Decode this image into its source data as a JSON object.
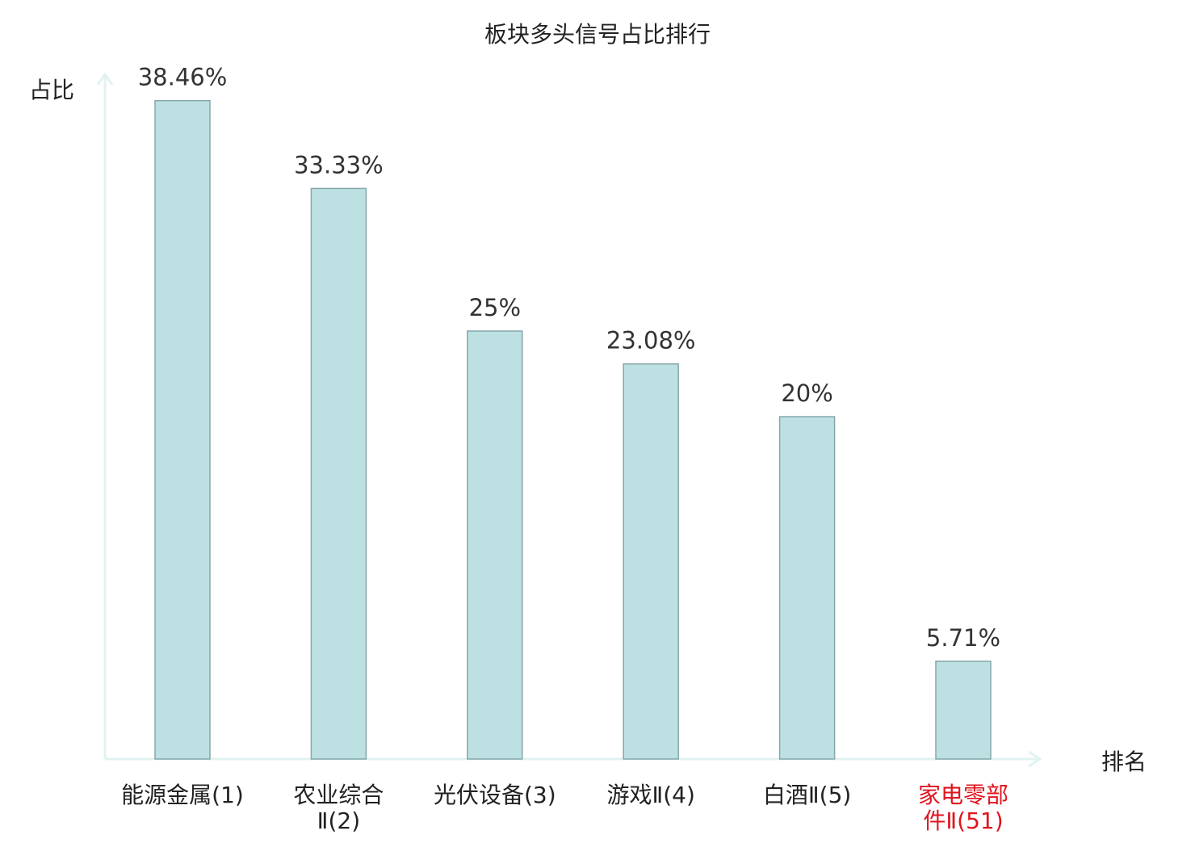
{
  "chart_data": {
    "type": "bar",
    "title": "板块多头信号占比排行",
    "xlabel": "排名",
    "ylabel": "占比",
    "ylim": [
      0,
      40
    ],
    "grid": false,
    "legend": "none",
    "categories": [
      [
        "能源金属(1)"
      ],
      [
        "农业综合",
        "Ⅱ(2)"
      ],
      [
        "光伏设备(3)"
      ],
      [
        "游戏Ⅱ(4)"
      ],
      [
        "白酒Ⅱ(5)"
      ],
      [
        "家电零部",
        "件Ⅱ(51)"
      ]
    ],
    "highlight_index": 5,
    "values": [
      38.46,
      33.33,
      25,
      23.08,
      20,
      5.71
    ],
    "value_labels": [
      "38.46%",
      "33.33%",
      "25%",
      "23.08%",
      "20%",
      "5.71%"
    ],
    "colors": {
      "bar_fill": "#bde0e3",
      "bar_stroke": "#86a7aa",
      "axis": "#e0f2f1",
      "text": "#222222",
      "value_text": "#333333",
      "highlight": "#e0141e"
    }
  }
}
